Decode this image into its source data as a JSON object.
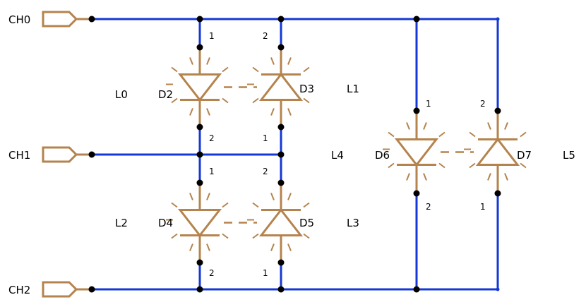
{
  "colors": {
    "wire": "#1438d6",
    "component": "#b5834d",
    "junction": "#000000",
    "text": "#000000"
  },
  "ports": [
    {
      "id": "ch0",
      "label": "CH0"
    },
    {
      "id": "ch1",
      "label": "CH1"
    },
    {
      "id": "ch2",
      "label": "CH2"
    }
  ],
  "diodes": [
    {
      "id": "D2",
      "designator": "D2",
      "led": "L0",
      "pin_top": "1",
      "pin_bottom": "2",
      "orientation": "down"
    },
    {
      "id": "D3",
      "designator": "D3",
      "led": "L1",
      "pin_top": "2",
      "pin_bottom": "1",
      "orientation": "up"
    },
    {
      "id": "D4",
      "designator": "D4",
      "led": "L2",
      "pin_top": "1",
      "pin_bottom": "2",
      "orientation": "down"
    },
    {
      "id": "D5",
      "designator": "D5",
      "led": "L3",
      "pin_top": "2",
      "pin_bottom": "1",
      "orientation": "up"
    },
    {
      "id": "D6",
      "designator": "D6",
      "led": "L4",
      "pin_top": "1",
      "pin_bottom": "2",
      "orientation": "down"
    },
    {
      "id": "D7",
      "designator": "D7",
      "led": "L5",
      "pin_top": "2",
      "pin_bottom": "1",
      "orientation": "up"
    }
  ]
}
